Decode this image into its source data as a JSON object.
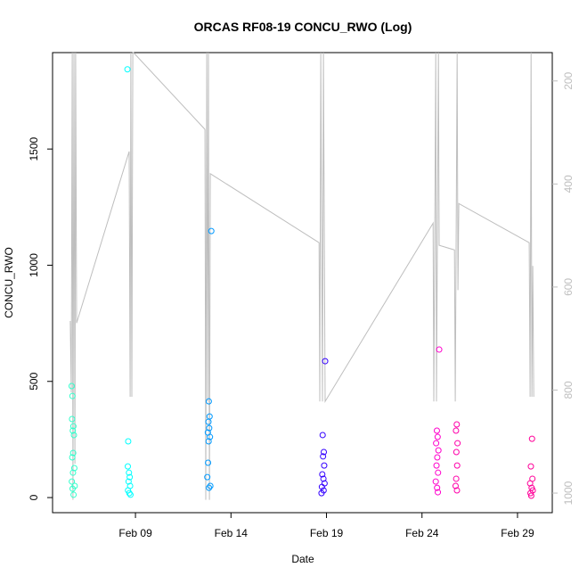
{
  "chart_data": {
    "type": "scatter",
    "title": "ORCAS RF08-19 CONCU_RWO (Log)",
    "x_label": "Date",
    "y_label": "CONCU_RWO",
    "xlim": [
      4.66,
      30.82
    ],
    "xticks": [
      {
        "value": 9,
        "label": "Feb 09"
      },
      {
        "value": 14,
        "label": "Feb 14"
      },
      {
        "value": 19,
        "label": "Feb 19"
      },
      {
        "value": 24,
        "label": "Feb 24"
      },
      {
        "value": 29,
        "label": "Feb 29"
      }
    ],
    "ylim": [
      -65,
      1915
    ],
    "yticks": [
      0,
      500,
      1000,
      1500
    ],
    "y2lim": [
      1038,
      145
    ],
    "y2ticks": [
      200,
      400,
      600,
      800,
      1000
    ],
    "y2_color": "#bebebe",
    "series": [
      {
        "axis": "y2",
        "color": "#bebebe",
        "x": [
          5.59,
          5.64,
          5.69,
          5.73,
          5.78,
          5.83,
          5.87,
          5.92,
          8.67,
          8.72,
          8.76,
          8.81,
          8.86,
          8.9,
          12.64,
          12.68,
          12.73,
          12.78,
          12.82,
          12.87,
          12.92,
          18.61,
          18.65,
          18.7,
          18.79,
          18.84,
          18.93,
          24.58,
          24.62,
          24.72,
          24.76,
          24.86,
          24.9,
          25.7,
          25.74,
          25.84,
          25.88,
          25.93,
          29.61,
          29.66,
          29.71,
          29.75,
          29.8,
          29.85
        ],
        "values": [
          666,
          805,
          145,
          1013,
          145,
          943,
          145,
          670,
          337,
          813,
          145,
          813,
          145,
          145,
          294,
          1013,
          145,
          822,
          145,
          1013,
          380,
          514,
          822,
          145,
          822,
          145,
          822,
          476,
          822,
          145,
          822,
          145,
          519,
          528,
          822,
          145,
          606,
          438,
          514,
          813,
          145,
          813,
          559,
          813
        ]
      },
      {
        "color": "#33ffcc",
        "x": [
          5.66,
          5.7,
          5.68,
          5.75,
          5.72,
          5.78,
          5.74,
          5.69,
          5.8,
          5.73,
          5.67,
          5.82,
          5.71,
          5.76
        ],
        "values": [
          480,
          437,
          338,
          307,
          288,
          269,
          192,
          173,
          127,
          107,
          69,
          50,
          38,
          12
        ]
      },
      {
        "color": "#00ffff",
        "x": [
          8.58,
          8.62,
          8.6,
          8.66,
          8.7,
          8.64,
          8.72,
          8.61,
          8.68,
          8.74
        ],
        "values": [
          1843,
          242,
          134,
          107,
          88,
          69,
          50,
          31,
          19,
          12
        ]
      },
      {
        "color": "#0099ff",
        "x": [
          12.97,
          12.84,
          12.88,
          12.82,
          12.86,
          12.79,
          12.9,
          12.83,
          12.8,
          12.76,
          12.92,
          12.85
        ],
        "values": [
          1147,
          414,
          349,
          326,
          299,
          280,
          261,
          242,
          150,
          88,
          50,
          42
        ]
      },
      {
        "color": "#3300ff",
        "x": [
          18.93,
          18.8,
          18.86,
          18.82,
          18.88,
          18.78,
          18.84,
          18.9,
          18.76,
          18.85,
          18.74
        ],
        "values": [
          587,
          269,
          196,
          177,
          138,
          100,
          81,
          61,
          46,
          31,
          19
        ]
      },
      {
        "color": "#ff00cc",
        "x": [
          24.9,
          24.78,
          24.82,
          24.74,
          24.86,
          24.8,
          24.76,
          24.84,
          24.72,
          24.79,
          24.83
        ],
        "values": [
          637,
          288,
          261,
          234,
          203,
          173,
          138,
          107,
          69,
          42,
          23
        ]
      },
      {
        "color": "#ff00aa",
        "x": [
          25.82,
          25.78,
          25.86,
          25.8,
          25.84,
          25.79,
          25.76,
          25.83
        ],
        "values": [
          315,
          288,
          234,
          196,
          138,
          81,
          50,
          31
        ]
      },
      {
        "color": "#ff0099",
        "x": [
          29.76,
          29.7,
          29.78,
          29.66,
          29.74,
          29.8,
          29.68,
          29.72
        ],
        "values": [
          253,
          134,
          81,
          61,
          42,
          31,
          19,
          8
        ]
      }
    ]
  }
}
